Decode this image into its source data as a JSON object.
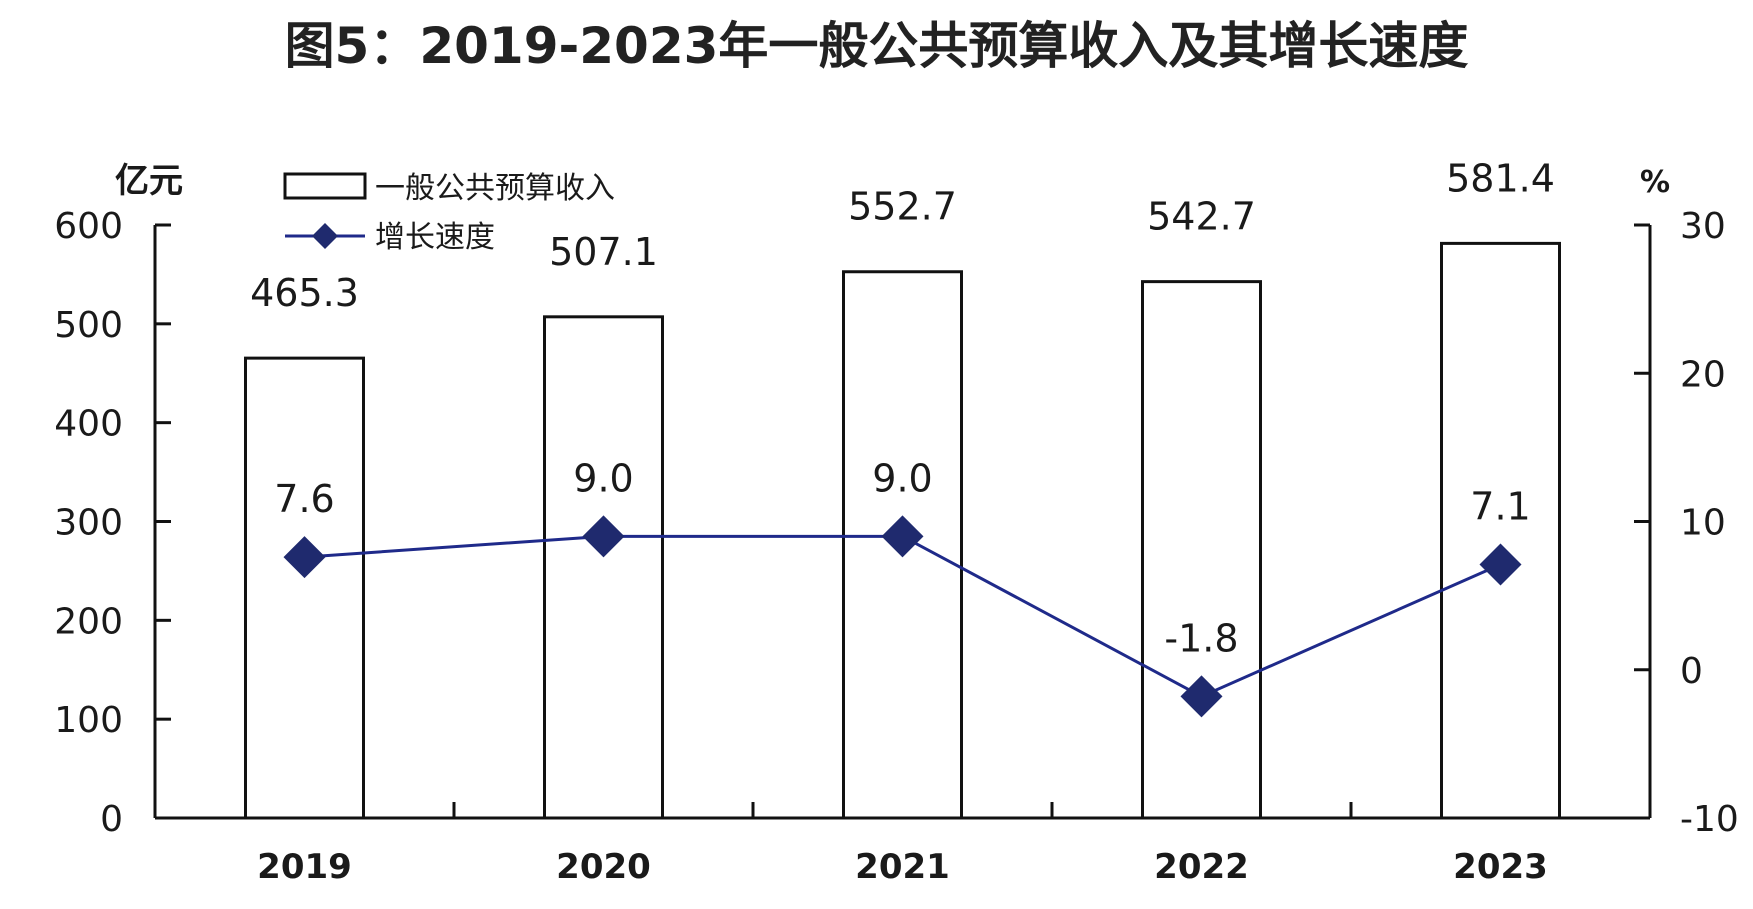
{
  "chart_data": {
    "type": "bar",
    "title": "图5：2019-2023年一般公共预算收入及其增长速度",
    "categories": [
      "2019",
      "2020",
      "2021",
      "2022",
      "2023"
    ],
    "series": [
      {
        "name": "一般公共预算收入",
        "type": "bar",
        "axis": "left",
        "values": [
          465.3,
          507.1,
          552.7,
          542.7,
          581.4
        ],
        "data_labels": [
          "465.3",
          "507.1",
          "552.7",
          "542.7",
          "581.4"
        ]
      },
      {
        "name": "增长速度",
        "type": "line",
        "axis": "right",
        "values": [
          7.6,
          9.0,
          9.0,
          -1.8,
          7.1
        ],
        "data_labels": [
          "7.6",
          "9.0",
          "9.0",
          "-1.8",
          "7.1"
        ]
      }
    ],
    "y_left": {
      "unit": "亿元",
      "ylim": [
        0,
        600
      ],
      "ticks": [
        0,
        100,
        200,
        300,
        400,
        500,
        600
      ]
    },
    "y_right": {
      "unit": "%",
      "ylim": [
        -10,
        30
      ],
      "ticks": [
        -10,
        0,
        10,
        20,
        30
      ]
    },
    "legend": {
      "placement": "top-left",
      "entries": [
        "一般公共预算收入",
        "增长速度"
      ]
    },
    "grid": false,
    "colors": {
      "bar_fill": "#ffffff",
      "bar_stroke": "#111111",
      "line": "#1f2a8a",
      "marker": "#1f2a6e",
      "axis": "#111111"
    }
  }
}
